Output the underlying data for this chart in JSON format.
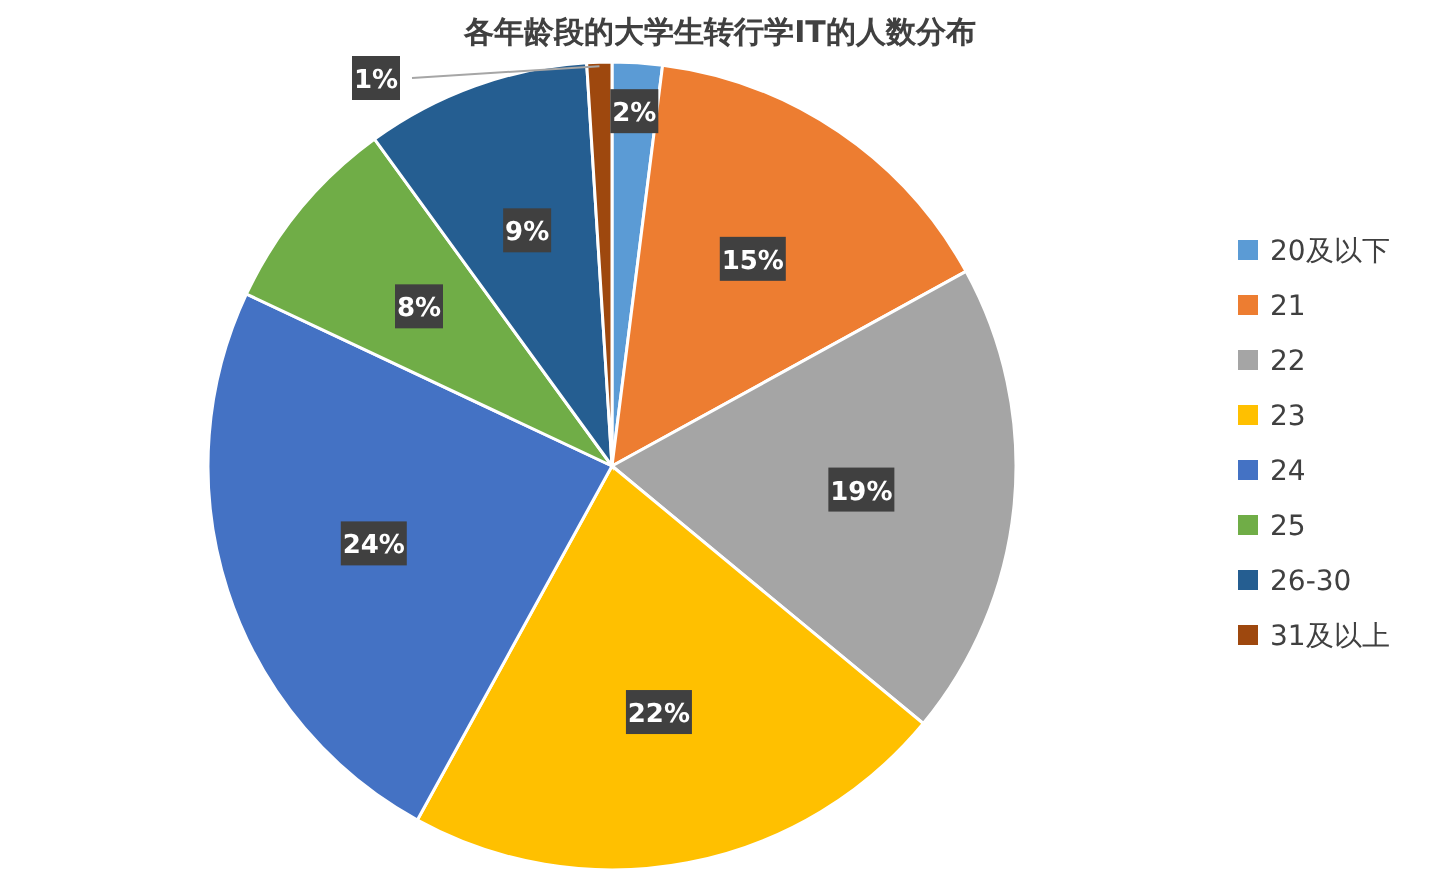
{
  "chart_data": {
    "type": "pie",
    "title": "各年龄段的大学生转行学IT的人数分布",
    "categories": [
      "20及以下",
      "21",
      "22",
      "23",
      "24",
      "25",
      "26-30",
      "31及以上"
    ],
    "values": [
      2,
      15,
      19,
      22,
      24,
      8,
      9,
      1
    ],
    "value_labels": [
      "2%",
      "15%",
      "19%",
      "22%",
      "24%",
      "8%",
      "9%",
      "1%"
    ],
    "colors": [
      "#5b9bd5",
      "#ed7d31",
      "#a5a5a5",
      "#ffc000",
      "#4472c4",
      "#70ad47",
      "#255e91",
      "#9e480e"
    ],
    "legend": "right"
  }
}
